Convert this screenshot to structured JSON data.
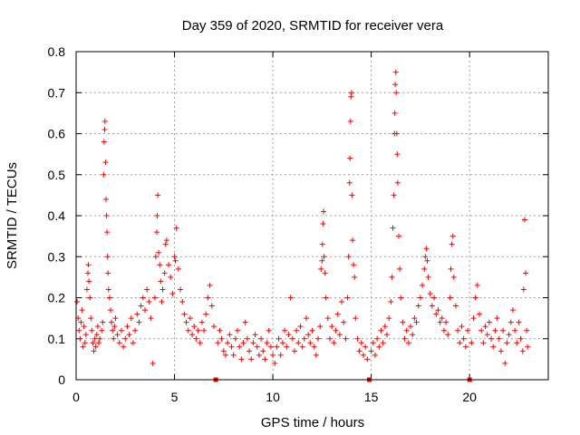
{
  "chart_data": {
    "type": "scatter",
    "title": "Day 359 of 2020, SRMTID for receiver vera",
    "xlabel": "GPS time / hours",
    "ylabel": "SRMTID / TECUs",
    "xlim": [
      0,
      24
    ],
    "ylim": [
      0,
      0.8
    ],
    "xticks": [
      0,
      5,
      10,
      15,
      20
    ],
    "yticks": [
      0,
      0.1,
      0.2,
      0.3,
      0.4,
      0.5,
      0.6,
      0.7,
      0.8
    ],
    "xtick_labels": [
      "0",
      "5",
      "10",
      "15",
      "20"
    ],
    "ytick_labels": [
      "0",
      "0.1",
      "0.2",
      "0.3",
      "0.4",
      "0.5",
      "0.6",
      "0.7",
      "0.8"
    ],
    "grid": true,
    "marker": "+",
    "color": "#ff0000",
    "zero_markers_x": [
      7.1,
      14.9,
      20.0
    ],
    "series": [
      {
        "name": "SRMTID",
        "points": [
          [
            0.05,
            0.19
          ],
          [
            0.1,
            0.15
          ],
          [
            0.15,
            0.12
          ],
          [
            0.2,
            0.1
          ],
          [
            0.25,
            0.14
          ],
          [
            0.3,
            0.17
          ],
          [
            0.35,
            0.08
          ],
          [
            0.4,
            0.13
          ],
          [
            0.45,
            0.09
          ],
          [
            0.5,
            0.11
          ],
          [
            0.55,
            0.22
          ],
          [
            0.6,
            0.26
          ],
          [
            0.62,
            0.28
          ],
          [
            0.65,
            0.24
          ],
          [
            0.7,
            0.2
          ],
          [
            0.75,
            0.15
          ],
          [
            0.8,
            0.12
          ],
          [
            0.85,
            0.09
          ],
          [
            0.9,
            0.07
          ],
          [
            0.95,
            0.1
          ],
          [
            1.0,
            0.08
          ],
          [
            1.05,
            0.11
          ],
          [
            1.1,
            0.13
          ],
          [
            1.15,
            0.09
          ],
          [
            1.2,
            0.1
          ],
          [
            1.3,
            0.12
          ],
          [
            1.35,
            0.14
          ],
          [
            1.4,
            0.5
          ],
          [
            1.42,
            0.58
          ],
          [
            1.45,
            0.61
          ],
          [
            1.47,
            0.63
          ],
          [
            1.5,
            0.53
          ],
          [
            1.52,
            0.44
          ],
          [
            1.55,
            0.4
          ],
          [
            1.57,
            0.36
          ],
          [
            1.6,
            0.3
          ],
          [
            1.62,
            0.26
          ],
          [
            1.65,
            0.22
          ],
          [
            1.7,
            0.2
          ],
          [
            1.75,
            0.17
          ],
          [
            1.8,
            0.14
          ],
          [
            1.85,
            0.12
          ],
          [
            1.9,
            0.1
          ],
          [
            1.95,
            0.13
          ],
          [
            2.0,
            0.15
          ],
          [
            2.1,
            0.11
          ],
          [
            2.2,
            0.09
          ],
          [
            2.3,
            0.12
          ],
          [
            2.4,
            0.08
          ],
          [
            2.5,
            0.1
          ],
          [
            2.6,
            0.13
          ],
          [
            2.7,
            0.11
          ],
          [
            2.8,
            0.15
          ],
          [
            2.9,
            0.09
          ],
          [
            3.0,
            0.12
          ],
          [
            3.1,
            0.16
          ],
          [
            3.2,
            0.14
          ],
          [
            3.3,
            0.18
          ],
          [
            3.4,
            0.2
          ],
          [
            3.5,
            0.17
          ],
          [
            3.6,
            0.22
          ],
          [
            3.7,
            0.19
          ],
          [
            3.8,
            0.15
          ],
          [
            3.9,
            0.04
          ],
          [
            4.0,
            0.2
          ],
          [
            4.05,
            0.3
          ],
          [
            4.1,
            0.36
          ],
          [
            4.12,
            0.4
          ],
          [
            4.15,
            0.45
          ],
          [
            4.2,
            0.31
          ],
          [
            4.25,
            0.28
          ],
          [
            4.3,
            0.24
          ],
          [
            4.35,
            0.19
          ],
          [
            4.4,
            0.22
          ],
          [
            4.5,
            0.26
          ],
          [
            4.55,
            0.33
          ],
          [
            4.6,
            0.34
          ],
          [
            4.7,
            0.28
          ],
          [
            4.8,
            0.25
          ],
          [
            4.9,
            0.21
          ],
          [
            5.0,
            0.3
          ],
          [
            5.05,
            0.29
          ],
          [
            5.1,
            0.37
          ],
          [
            5.2,
            0.27
          ],
          [
            5.3,
            0.22
          ],
          [
            5.4,
            0.19
          ],
          [
            5.5,
            0.16
          ],
          [
            5.6,
            0.14
          ],
          [
            5.7,
            0.12
          ],
          [
            5.8,
            0.15
          ],
          [
            5.9,
            0.11
          ],
          [
            6.0,
            0.13
          ],
          [
            6.1,
            0.1
          ],
          [
            6.2,
            0.12
          ],
          [
            6.3,
            0.09
          ],
          [
            6.4,
            0.14
          ],
          [
            6.5,
            0.12
          ],
          [
            6.6,
            0.16
          ],
          [
            6.7,
            0.2
          ],
          [
            6.8,
            0.23
          ],
          [
            6.9,
            0.18
          ],
          [
            7.0,
            0.13
          ],
          [
            7.2,
            0.09
          ],
          [
            7.3,
            0.12
          ],
          [
            7.4,
            0.1
          ],
          [
            7.5,
            0.07
          ],
          [
            7.6,
            0.06
          ],
          [
            7.7,
            0.09
          ],
          [
            7.8,
            0.11
          ],
          [
            7.9,
            0.08
          ],
          [
            8.0,
            0.06
          ],
          [
            8.1,
            0.1
          ],
          [
            8.2,
            0.12
          ],
          [
            8.3,
            0.08
          ],
          [
            8.4,
            0.05
          ],
          [
            8.5,
            0.09
          ],
          [
            8.6,
            0.14
          ],
          [
            8.7,
            0.1
          ],
          [
            8.8,
            0.07
          ],
          [
            8.9,
            0.05
          ],
          [
            9.0,
            0.09
          ],
          [
            9.1,
            0.11
          ],
          [
            9.2,
            0.08
          ],
          [
            9.3,
            0.06
          ],
          [
            9.4,
            0.1
          ],
          [
            9.5,
            0.07
          ],
          [
            9.6,
            0.05
          ],
          [
            9.7,
            0.09
          ],
          [
            9.8,
            0.12
          ],
          [
            9.9,
            0.08
          ],
          [
            10.0,
            0.06
          ],
          [
            10.1,
            0.04
          ],
          [
            10.2,
            0.08
          ],
          [
            10.3,
            0.1
          ],
          [
            10.4,
            0.06
          ],
          [
            10.5,
            0.09
          ],
          [
            10.6,
            0.12
          ],
          [
            10.7,
            0.08
          ],
          [
            10.8,
            0.11
          ],
          [
            10.9,
            0.2
          ],
          [
            11.0,
            0.1
          ],
          [
            11.1,
            0.07
          ],
          [
            11.2,
            0.12
          ],
          [
            11.3,
            0.09
          ],
          [
            11.4,
            0.13
          ],
          [
            11.5,
            0.08
          ],
          [
            11.6,
            0.1
          ],
          [
            11.7,
            0.15
          ],
          [
            11.8,
            0.11
          ],
          [
            11.9,
            0.09
          ],
          [
            12.0,
            0.12
          ],
          [
            12.1,
            0.08
          ],
          [
            12.2,
            0.06
          ],
          [
            12.3,
            0.1
          ],
          [
            12.4,
            0.13
          ],
          [
            12.45,
            0.27
          ],
          [
            12.5,
            0.29
          ],
          [
            12.52,
            0.33
          ],
          [
            12.55,
            0.38
          ],
          [
            12.58,
            0.41
          ],
          [
            12.6,
            0.3
          ],
          [
            12.65,
            0.26
          ],
          [
            12.7,
            0.2
          ],
          [
            12.8,
            0.15
          ],
          [
            12.9,
            0.1
          ],
          [
            13.0,
            0.13
          ],
          [
            13.1,
            0.09
          ],
          [
            13.2,
            0.12
          ],
          [
            13.3,
            0.16
          ],
          [
            13.4,
            0.11
          ],
          [
            13.5,
            0.19
          ],
          [
            13.6,
            0.14
          ],
          [
            13.7,
            0.1
          ],
          [
            13.8,
            0.2
          ],
          [
            13.85,
            0.3
          ],
          [
            13.9,
            0.48
          ],
          [
            13.92,
            0.54
          ],
          [
            13.95,
            0.63
          ],
          [
            13.97,
            0.69
          ],
          [
            14.0,
            0.7
          ],
          [
            14.02,
            0.45
          ],
          [
            14.05,
            0.34
          ],
          [
            14.1,
            0.28
          ],
          [
            14.15,
            0.25
          ],
          [
            14.2,
            0.15
          ],
          [
            14.3,
            0.1
          ],
          [
            14.4,
            0.07
          ],
          [
            14.5,
            0.09
          ],
          [
            14.6,
            0.06
          ],
          [
            14.7,
            0.08
          ],
          [
            14.8,
            0.05
          ],
          [
            15.0,
            0.07
          ],
          [
            15.1,
            0.09
          ],
          [
            15.2,
            0.06
          ],
          [
            15.3,
            0.1
          ],
          [
            15.4,
            0.08
          ],
          [
            15.5,
            0.12
          ],
          [
            15.6,
            0.09
          ],
          [
            15.7,
            0.13
          ],
          [
            15.8,
            0.11
          ],
          [
            15.9,
            0.15
          ],
          [
            16.0,
            0.19
          ],
          [
            16.05,
            0.25
          ],
          [
            16.1,
            0.37
          ],
          [
            16.15,
            0.45
          ],
          [
            16.18,
            0.6
          ],
          [
            16.2,
            0.65
          ],
          [
            16.22,
            0.72
          ],
          [
            16.25,
            0.75
          ],
          [
            16.27,
            0.7
          ],
          [
            16.3,
            0.6
          ],
          [
            16.32,
            0.55
          ],
          [
            16.35,
            0.48
          ],
          [
            16.4,
            0.35
          ],
          [
            16.45,
            0.27
          ],
          [
            16.5,
            0.2
          ],
          [
            16.6,
            0.14
          ],
          [
            16.7,
            0.1
          ],
          [
            16.8,
            0.12
          ],
          [
            16.9,
            0.09
          ],
          [
            17.0,
            0.13
          ],
          [
            17.1,
            0.11
          ],
          [
            17.2,
            0.15
          ],
          [
            17.3,
            0.14
          ],
          [
            17.4,
            0.18
          ],
          [
            17.5,
            0.2
          ],
          [
            17.6,
            0.23
          ],
          [
            17.7,
            0.27
          ],
          [
            17.75,
            0.3
          ],
          [
            17.8,
            0.32
          ],
          [
            17.85,
            0.29
          ],
          [
            17.9,
            0.25
          ],
          [
            18.0,
            0.21
          ],
          [
            18.1,
            0.18
          ],
          [
            18.2,
            0.2
          ],
          [
            18.3,
            0.16
          ],
          [
            18.4,
            0.17
          ],
          [
            18.5,
            0.14
          ],
          [
            18.6,
            0.15
          ],
          [
            18.7,
            0.12
          ],
          [
            18.8,
            0.14
          ],
          [
            18.9,
            0.11
          ],
          [
            19.0,
            0.2
          ],
          [
            19.05,
            0.27
          ],
          [
            19.1,
            0.33
          ],
          [
            19.15,
            0.35
          ],
          [
            19.2,
            0.25
          ],
          [
            19.3,
            0.18
          ],
          [
            19.4,
            0.12
          ],
          [
            19.5,
            0.09
          ],
          [
            19.6,
            0.13
          ],
          [
            19.7,
            0.1
          ],
          [
            19.8,
            0.08
          ],
          [
            19.9,
            0.12
          ],
          [
            20.1,
            0.09
          ],
          [
            20.2,
            0.15
          ],
          [
            20.3,
            0.2
          ],
          [
            20.4,
            0.23
          ],
          [
            20.5,
            0.16
          ],
          [
            20.6,
            0.12
          ],
          [
            20.7,
            0.09
          ],
          [
            20.8,
            0.13
          ],
          [
            20.9,
            0.11
          ],
          [
            21.0,
            0.14
          ],
          [
            21.1,
            0.1
          ],
          [
            21.2,
            0.08
          ],
          [
            21.3,
            0.12
          ],
          [
            21.4,
            0.15
          ],
          [
            21.5,
            0.1
          ],
          [
            21.6,
            0.07
          ],
          [
            21.7,
            0.12
          ],
          [
            21.8,
            0.04
          ],
          [
            21.9,
            0.09
          ],
          [
            22.0,
            0.11
          ],
          [
            22.1,
            0.14
          ],
          [
            22.2,
            0.17
          ],
          [
            22.3,
            0.12
          ],
          [
            22.4,
            0.09
          ],
          [
            22.5,
            0.14
          ],
          [
            22.6,
            0.1
          ],
          [
            22.7,
            0.07
          ],
          [
            22.75,
            0.22
          ],
          [
            22.8,
            0.39
          ],
          [
            22.85,
            0.26
          ],
          [
            22.9,
            0.12
          ],
          [
            22.95,
            0.08
          ]
        ]
      }
    ]
  }
}
